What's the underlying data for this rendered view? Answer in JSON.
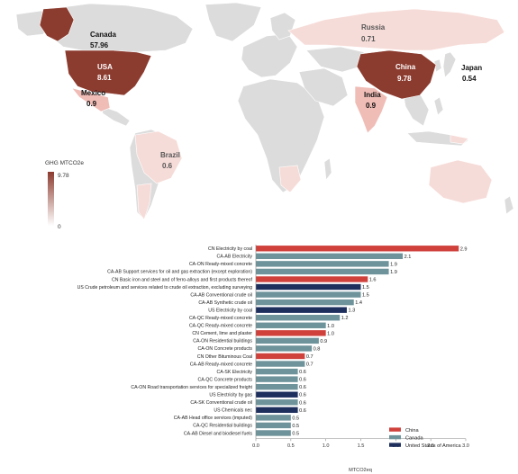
{
  "chart_data": [
    {
      "type": "choropleth",
      "legend_title": "GHG MTCO2e",
      "legend_max": "9.78",
      "legend_min": "0",
      "colors": {
        "high": "#8c3b2f",
        "low": "#f6dcd8",
        "nodata": "#dcdcdc"
      },
      "regions": [
        {
          "name": "Canada",
          "value": "57.96"
        },
        {
          "name": "USA",
          "value": "8.61"
        },
        {
          "name": "Russia",
          "value": "0.71"
        },
        {
          "name": "China",
          "value": "9.78"
        },
        {
          "name": "Japan",
          "value": "0.54"
        },
        {
          "name": "Mexico",
          "value": "0.9"
        },
        {
          "name": "India",
          "value": "0.9"
        },
        {
          "name": "Brazil",
          "value": "0.6"
        }
      ]
    },
    {
      "type": "bar",
      "orientation": "horizontal",
      "xlabel": "MTCO2eq",
      "xlim": [
        0,
        3.0
      ],
      "xticks": [
        "0.0",
        "0.5",
        "1.0",
        "1.5",
        "2.0",
        "2.5",
        "3.0"
      ],
      "legend_placement": "bottom-right",
      "series_colors": {
        "China": "#d0413c",
        "Canada": "#6e939a",
        "United States of America": "#1e2f5e"
      },
      "legend": [
        "China",
        "Canada",
        "United States of America"
      ],
      "bars": [
        {
          "label": "CN Electricity by coal",
          "value": 2.9,
          "country": "China",
          "value_label": "2.9"
        },
        {
          "label": "CA-AB Electricity",
          "value": 2.1,
          "country": "Canada",
          "value_label": "2.1"
        },
        {
          "label": "CA-ON Ready-mixed concrete",
          "value": 1.9,
          "country": "Canada",
          "value_label": "1.9"
        },
        {
          "label": "CA-AB Support services for oil and gas extraction (except exploration)",
          "value": 1.9,
          "country": "Canada",
          "value_label": "1.9"
        },
        {
          "label": "CN Basic iron and steel and of ferro-alloys and first products thereof",
          "value": 1.6,
          "country": "China",
          "value_label": "1.6"
        },
        {
          "label": "US Crude petroleum and services related to crude oil extraction, excluding surveying",
          "value": 1.5,
          "country": "United States of America",
          "value_label": "1.5"
        },
        {
          "label": "CA-AB Conventional crude oil",
          "value": 1.5,
          "country": "Canada",
          "value_label": "1.5"
        },
        {
          "label": "CA-AB Synthetic crude oil",
          "value": 1.4,
          "country": "Canada",
          "value_label": "1.4"
        },
        {
          "label": "US Electricity by coal",
          "value": 1.3,
          "country": "United States of America",
          "value_label": "1.3"
        },
        {
          "label": "CA-QC Ready-mixed concrete",
          "value": 1.2,
          "country": "Canada",
          "value_label": "1.2"
        },
        {
          "label": "CA-QC Ready-mixed concrete",
          "value": 1.0,
          "country": "Canada",
          "value_label": "1.0"
        },
        {
          "label": "CN Cement, lime and plaster",
          "value": 1.0,
          "country": "China",
          "value_label": "1.0"
        },
        {
          "label": "CA-ON Residential buildings",
          "value": 0.9,
          "country": "Canada",
          "value_label": "0.9"
        },
        {
          "label": "CA-ON Concrete products",
          "value": 0.8,
          "country": "Canada",
          "value_label": "0.8"
        },
        {
          "label": "CN Other Bituminous Coal",
          "value": 0.7,
          "country": "China",
          "value_label": "0.7"
        },
        {
          "label": "CA-AB Ready-mixed concrete",
          "value": 0.7,
          "country": "Canada",
          "value_label": "0.7"
        },
        {
          "label": "CA-SK Electricity",
          "value": 0.6,
          "country": "Canada",
          "value_label": "0.6"
        },
        {
          "label": "CA-QC Concrete products",
          "value": 0.6,
          "country": "Canada",
          "value_label": "0.6"
        },
        {
          "label": "CA-ON Road transportation services for specialized freight",
          "value": 0.6,
          "country": "Canada",
          "value_label": "0.6"
        },
        {
          "label": "US Electricity by gas",
          "value": 0.6,
          "country": "United States of America",
          "value_label": "0.6"
        },
        {
          "label": "CA-SK Conventional crude oil",
          "value": 0.6,
          "country": "Canada",
          "value_label": "0.6"
        },
        {
          "label": "US Chemicals nec",
          "value": 0.6,
          "country": "United States of America",
          "value_label": "0.6"
        },
        {
          "label": "CA-AB Head office services (imputed)",
          "value": 0.5,
          "country": "Canada",
          "value_label": "0.5"
        },
        {
          "label": "CA-QC Residential buildings",
          "value": 0.5,
          "country": "Canada",
          "value_label": "0.5"
        },
        {
          "label": "CA-AB Diesel and biodiesel fuels",
          "value": 0.5,
          "country": "Canada",
          "value_label": "0.5"
        }
      ]
    }
  ]
}
